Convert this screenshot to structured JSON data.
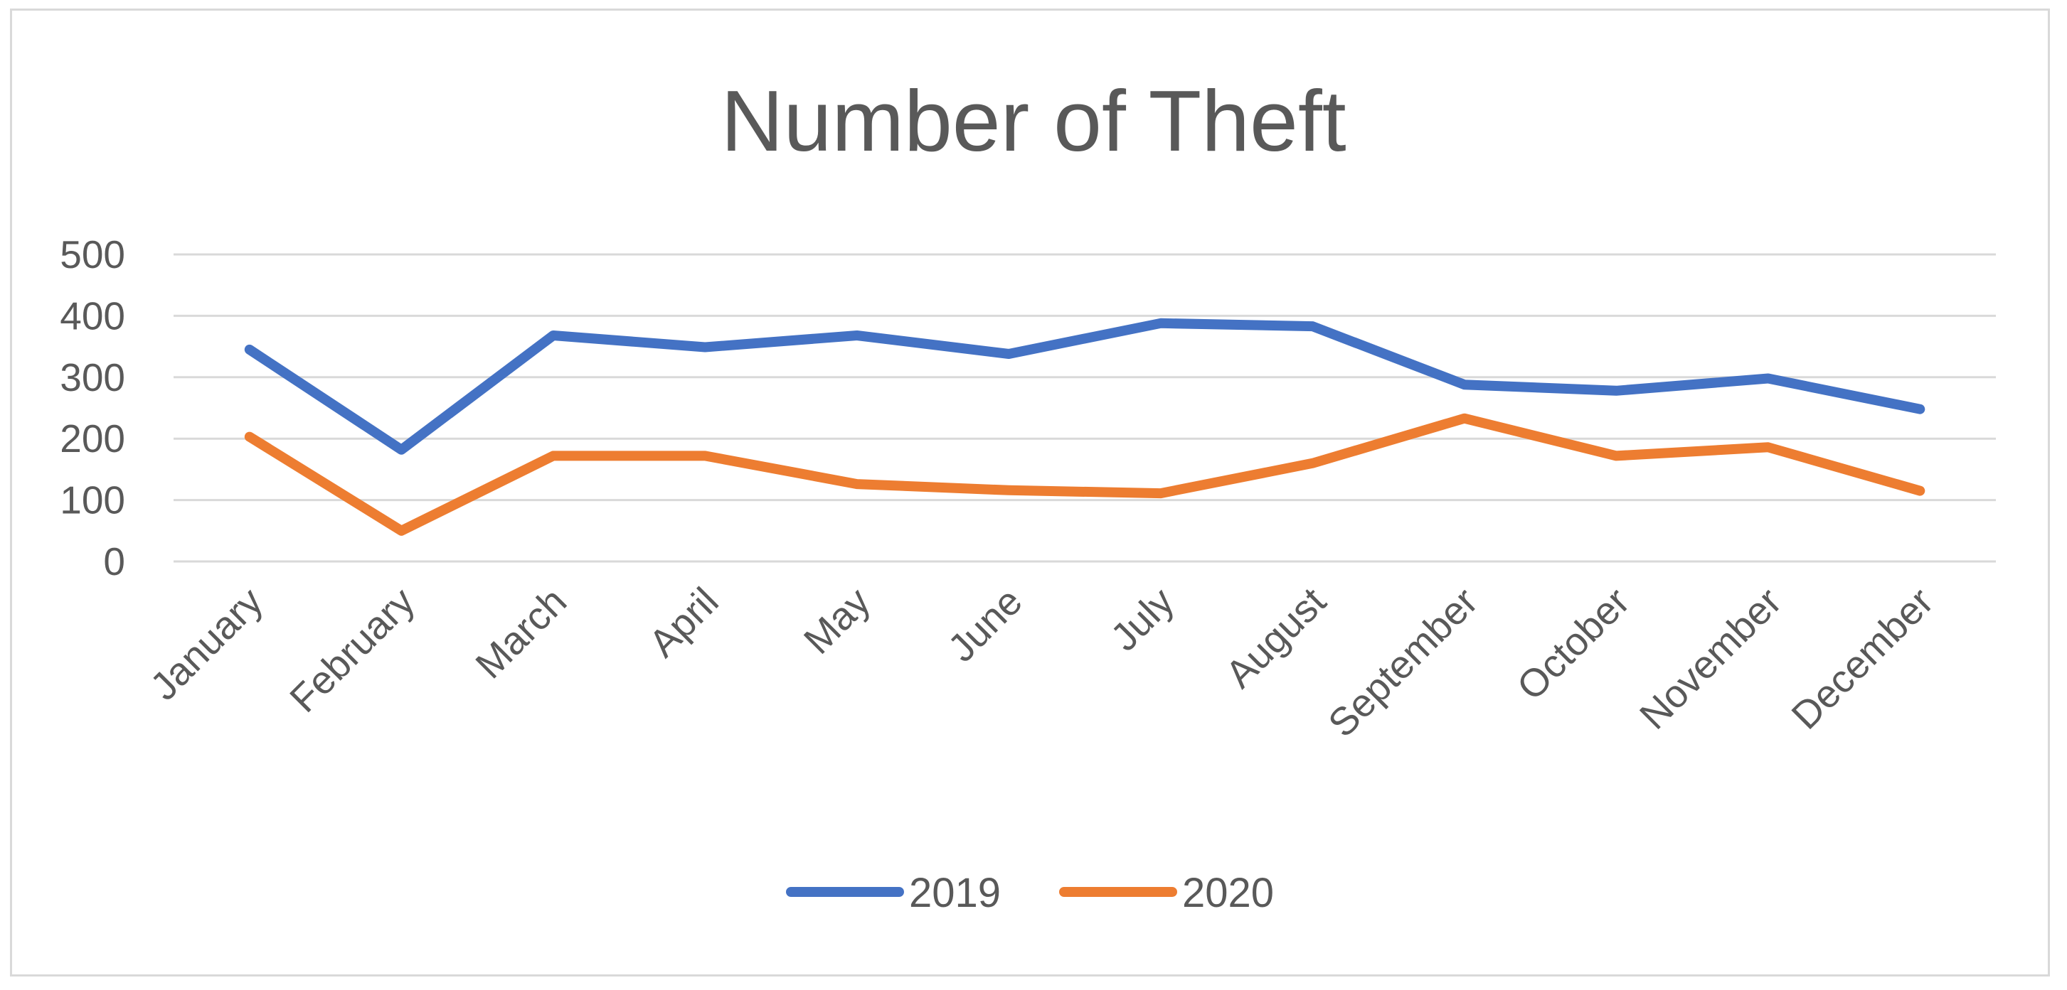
{
  "chart_data": {
    "type": "line",
    "title": "Number of Theft",
    "xlabel": "",
    "ylabel": "",
    "categories": [
      "January",
      "February",
      "March",
      "April",
      "May",
      "June",
      "July",
      "August",
      "September",
      "October",
      "November",
      "December"
    ],
    "ylim": [
      0,
      500
    ],
    "yticks": [
      0,
      100,
      200,
      300,
      400,
      500
    ],
    "grid": true,
    "legend_position": "bottom",
    "series": [
      {
        "name": "2019",
        "color": "#4472C4",
        "values": [
          345,
          182,
          368,
          349,
          368,
          338,
          388,
          383,
          288,
          278,
          298,
          248
        ]
      },
      {
        "name": "2020",
        "color": "#ED7D31",
        "values": [
          203,
          50,
          172,
          172,
          126,
          116,
          111,
          160,
          233,
          172,
          186,
          115
        ]
      }
    ]
  }
}
